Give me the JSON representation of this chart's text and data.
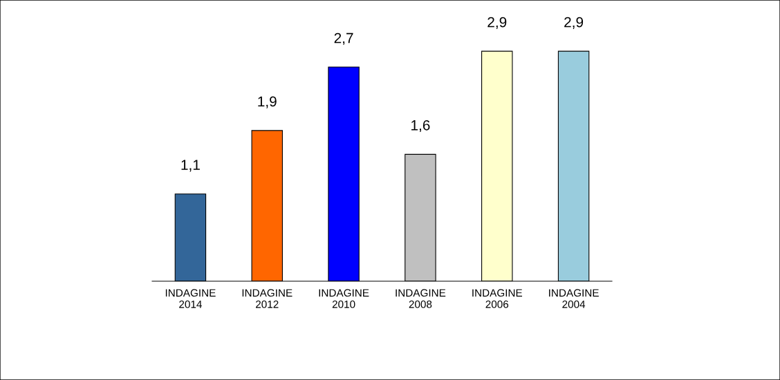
{
  "chart_data": {
    "type": "bar",
    "categories": [
      "INDAGINE\n2014",
      "INDAGINE\n2012",
      "INDAGINE\n2010",
      "INDAGINE\n2008",
      "INDAGINE\n2006",
      "INDAGINE\n2004"
    ],
    "values": [
      1.1,
      1.9,
      2.7,
      1.6,
      2.9,
      2.9
    ],
    "value_labels": [
      "1,1",
      "1,9",
      "2,7",
      "1,6",
      "2,9",
      "2,9"
    ],
    "colors": [
      "#336699",
      "#ff6600",
      "#0000ff",
      "#c0c0c0",
      "#ffffcc",
      "#99ccdd"
    ],
    "tick_labels": "x",
    "grid": false,
    "legend": false
  }
}
